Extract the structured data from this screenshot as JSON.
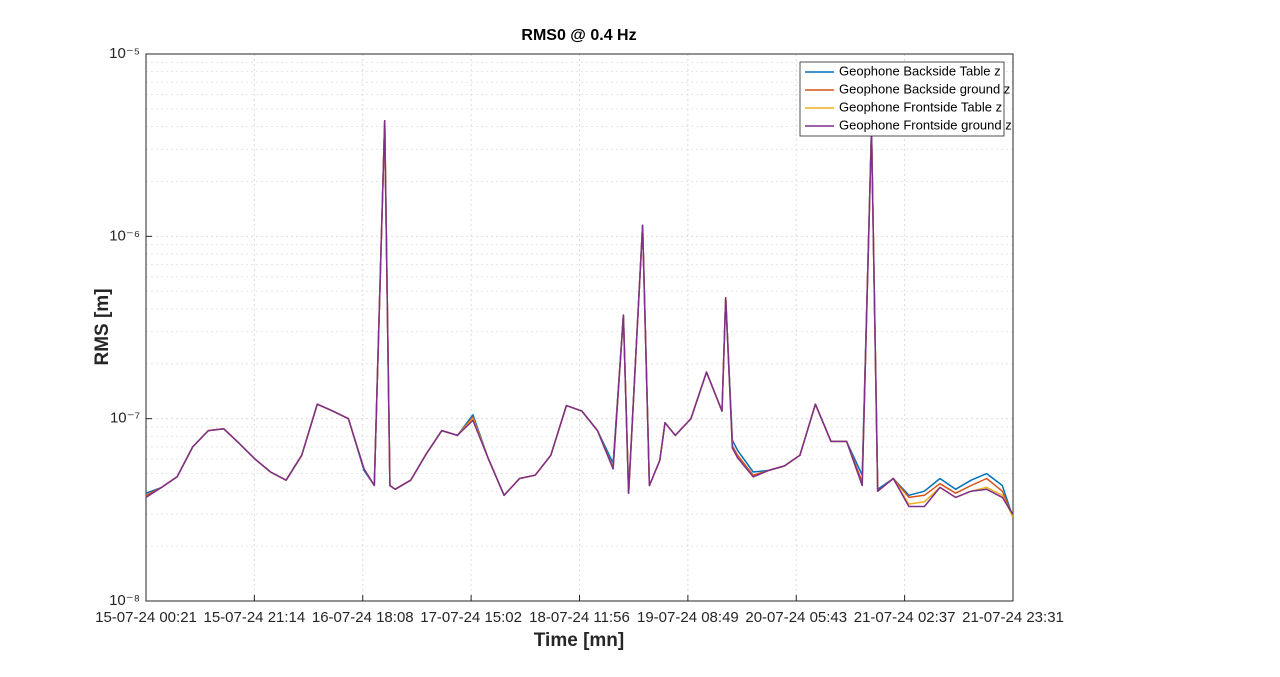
{
  "chart_data": {
    "type": "line",
    "title": "RMS0 @ 0.4 Hz",
    "xlabel": "Time [mn]",
    "ylabel": "RMS [m]",
    "log_y": true,
    "grid": true,
    "legend": "upper right",
    "xlim": [
      0,
      167.067
    ],
    "xticks": [
      {
        "value": 0,
        "label": "15-07-24 00:21"
      },
      {
        "value": 20.883,
        "label": "15-07-24 21:14"
      },
      {
        "value": 41.767,
        "label": "16-07-24 18:08"
      },
      {
        "value": 62.65,
        "label": "17-07-24 15:02"
      },
      {
        "value": 83.533,
        "label": "18-07-24 11:56"
      },
      {
        "value": 104.417,
        "label": "19-07-24 08:49"
      },
      {
        "value": 125.3,
        "label": "20-07-24 05:43"
      },
      {
        "value": 146.183,
        "label": "21-07-24 02:37"
      },
      {
        "value": 167.067,
        "label": "21-07-24 23:31"
      }
    ],
    "ylim": [
      1e-08,
      1e-05
    ],
    "yticks": [
      {
        "value": 1e-08,
        "label": "10⁻⁸"
      },
      {
        "value": 1e-07,
        "label": "10⁻⁷"
      },
      {
        "value": 1e-06,
        "label": "10⁻⁶"
      },
      {
        "value": 1e-05,
        "label": "10⁻⁵"
      }
    ],
    "x": [
      0,
      3,
      6,
      9,
      12,
      15,
      18,
      21,
      24,
      27,
      30,
      33,
      36,
      39,
      42,
      44,
      46,
      47,
      48,
      51,
      54,
      57,
      60,
      63,
      66,
      69,
      72,
      75,
      78,
      81,
      84,
      87,
      90,
      92,
      93,
      95.7,
      97,
      99,
      100,
      102,
      105,
      108,
      111,
      111.7,
      113,
      114,
      117,
      120,
      123,
      126,
      129,
      132,
      135,
      138,
      139.8,
      141,
      144,
      147,
      150,
      153,
      156,
      159,
      162,
      165,
      167
    ],
    "series": [
      {
        "name": "Geophone Backside Table z",
        "color": "#0072BD",
        "values": [
          3.9e-08,
          4.2e-08,
          4.8e-08,
          7e-08,
          8.6e-08,
          8.8e-08,
          7.3e-08,
          6e-08,
          5.1e-08,
          4.6e-08,
          6.3e-08,
          1.2e-07,
          1.1e-07,
          1e-07,
          5.2e-08,
          4.3e-08,
          4.3e-06,
          4.3e-08,
          4.1e-08,
          4.6e-08,
          6.4e-08,
          8.6e-08,
          8.1e-08,
          1.05e-07,
          6e-08,
          3.8e-08,
          4.7e-08,
          4.9e-08,
          6.3e-08,
          1.18e-07,
          1.1e-07,
          8.6e-08,
          5.7e-08,
          3.7e-07,
          3.9e-08,
          1.15e-06,
          4.3e-08,
          5.9e-08,
          9.5e-08,
          8.1e-08,
          1e-07,
          1.8e-07,
          1.1e-07,
          4.6e-07,
          7.6e-08,
          6.7e-08,
          5.1e-08,
          5.2e-08,
          5.5e-08,
          6.3e-08,
          1.2e-07,
          7.5e-08,
          7.5e-08,
          4.9e-08,
          3.9e-06,
          4.1e-08,
          4.7e-08,
          3.8e-08,
          4e-08,
          4.7e-08,
          4.1e-08,
          4.6e-08,
          5e-08,
          4.3e-08,
          2.9e-08
        ]
      },
      {
        "name": "Geophone Backside ground z",
        "color": "#D95319",
        "values": [
          3.8e-08,
          4.2e-08,
          4.8e-08,
          7e-08,
          8.6e-08,
          8.8e-08,
          7.3e-08,
          6e-08,
          5.1e-08,
          4.6e-08,
          6.3e-08,
          1.2e-07,
          1.1e-07,
          1e-07,
          5.3e-08,
          4.3e-08,
          4.3e-06,
          4.3e-08,
          4.1e-08,
          4.6e-08,
          6.4e-08,
          8.6e-08,
          8.1e-08,
          1.02e-07,
          6e-08,
          3.8e-08,
          4.7e-08,
          4.9e-08,
          6.3e-08,
          1.18e-07,
          1.1e-07,
          8.6e-08,
          5.4e-08,
          3.7e-07,
          3.9e-08,
          1.15e-06,
          4.3e-08,
          5.9e-08,
          9.5e-08,
          8.1e-08,
          1e-07,
          1.8e-07,
          1.1e-07,
          4.6e-07,
          7.1e-08,
          6.3e-08,
          4.9e-08,
          5.2e-08,
          5.5e-08,
          6.3e-08,
          1.2e-07,
          7.5e-08,
          7.5e-08,
          4.5e-08,
          3.9e-06,
          4e-08,
          4.7e-08,
          3.7e-08,
          3.8e-08,
          4.4e-08,
          3.9e-08,
          4.3e-08,
          4.7e-08,
          4e-08,
          2.9e-08
        ]
      },
      {
        "name": "Geophone Frontside Table z",
        "color": "#EDB120",
        "values": [
          3.7e-08,
          4.2e-08,
          4.8e-08,
          7e-08,
          8.6e-08,
          8.8e-08,
          7.3e-08,
          6e-08,
          5.1e-08,
          4.6e-08,
          6.3e-08,
          1.2e-07,
          1.1e-07,
          1e-07,
          5.3e-08,
          4.3e-08,
          4.3e-06,
          4.3e-08,
          4.1e-08,
          4.6e-08,
          6.4e-08,
          8.6e-08,
          8.1e-08,
          1e-07,
          6e-08,
          3.8e-08,
          4.7e-08,
          4.9e-08,
          6.3e-08,
          1.18e-07,
          1.1e-07,
          8.6e-08,
          5.3e-08,
          3.7e-07,
          3.9e-08,
          1.15e-06,
          4.3e-08,
          5.9e-08,
          9.5e-08,
          8.1e-08,
          1e-07,
          1.8e-07,
          1.1e-07,
          4.6e-07,
          6.9e-08,
          6.1e-08,
          4.8e-08,
          5.2e-08,
          5.5e-08,
          6.3e-08,
          1.2e-07,
          7.5e-08,
          7.5e-08,
          4.3e-08,
          3.9e-06,
          4e-08,
          4.7e-08,
          3.4e-08,
          3.5e-08,
          4.2e-08,
          3.7e-08,
          4e-08,
          4.2e-08,
          3.8e-08,
          2.9e-08
        ]
      },
      {
        "name": "Geophone Frontside ground z",
        "color": "#7E2F8E",
        "values": [
          3.7e-08,
          4.2e-08,
          4.8e-08,
          7e-08,
          8.6e-08,
          8.8e-08,
          7.3e-08,
          6e-08,
          5.1e-08,
          4.6e-08,
          6.3e-08,
          1.2e-07,
          1.1e-07,
          1e-07,
          5.3e-08,
          4.3e-08,
          4.3e-06,
          4.3e-08,
          4.1e-08,
          4.6e-08,
          6.4e-08,
          8.6e-08,
          8.1e-08,
          9.8e-08,
          6e-08,
          3.8e-08,
          4.7e-08,
          4.9e-08,
          6.3e-08,
          1.18e-07,
          1.1e-07,
          8.6e-08,
          5.3e-08,
          3.7e-07,
          3.9e-08,
          1.15e-06,
          4.3e-08,
          5.9e-08,
          9.5e-08,
          8.1e-08,
          1e-07,
          1.8e-07,
          1.1e-07,
          4.6e-07,
          6.9e-08,
          6.1e-08,
          4.8e-08,
          5.2e-08,
          5.5e-08,
          6.3e-08,
          1.2e-07,
          7.5e-08,
          7.5e-08,
          4.3e-08,
          3.9e-06,
          4e-08,
          4.7e-08,
          3.3e-08,
          3.3e-08,
          4.2e-08,
          3.7e-08,
          4e-08,
          4.1e-08,
          3.7e-08,
          3e-08
        ]
      }
    ]
  }
}
